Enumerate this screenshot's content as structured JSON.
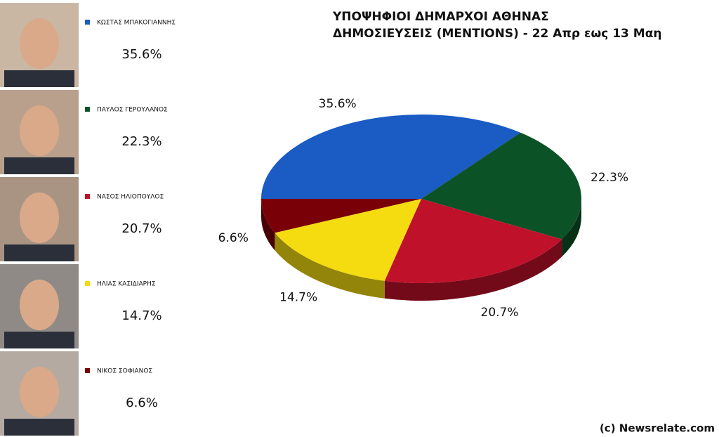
{
  "chart_data": {
    "type": "pie",
    "title": [
      "ΥΠΟΨΗΦΙΟΙ ΔΗΜΑΡΧΟΙ ΑΘΗΝΑΣ",
      "ΔΗΜΟΣΙΕΥΣΕΙΣ (MENTIONS) - 22 Απρ εως 13 Μαη"
    ],
    "categories": [
      "ΚΩΣΤΑΣ ΜΠΑΚΟΓΙΑΝΝΗΣ",
      "ΠΑΥΛΟΣ ΓΕΡΟΥΛΑΝΟΣ",
      "ΝΑΣΟΣ ΗΛΙΟΠΟΥΛΟΣ",
      "ΗΛΙΑΣ ΚΑΣΙΔΙΑΡΗΣ",
      "ΝΙΚΟΣ ΣΟΦΙΑΝΟΣ"
    ],
    "values": [
      35.6,
      22.3,
      20.7,
      14.7,
      6.6
    ],
    "value_labels": [
      "35.6%",
      "22.3%",
      "20.7%",
      "14.7%",
      "6.6%"
    ],
    "colors": [
      "#1a5bc4",
      "#0c5227",
      "#c0112a",
      "#f5dc10",
      "#7a0008"
    ],
    "credit": "(c) Newsrelate.com"
  }
}
